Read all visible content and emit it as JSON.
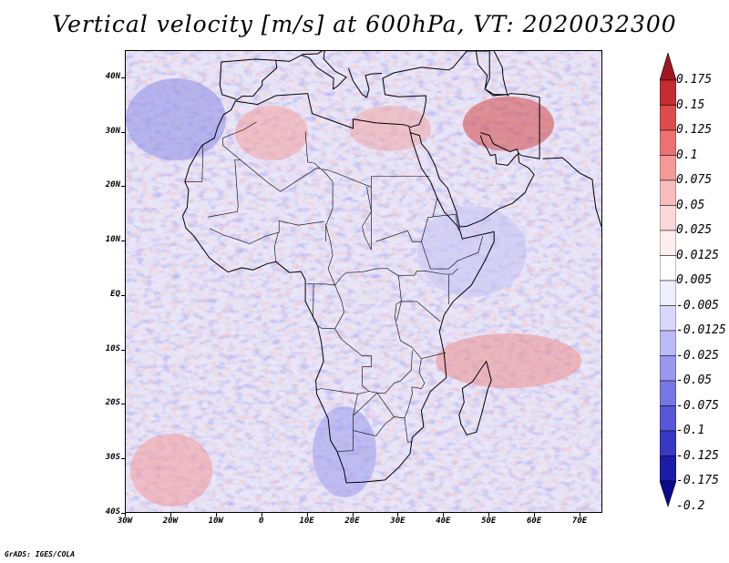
{
  "title": "Vertical velocity [m/s] at 600hPa, VT: 2020032300",
  "credit": "GrADS: IGES/COLA",
  "map": {
    "projection": "latlon",
    "lon_range": [
      -30,
      75
    ],
    "lat_range": [
      -40,
      45
    ],
    "lat_ticks": [
      "40N",
      "30N",
      "20N",
      "10N",
      "EQ",
      "10S",
      "20S",
      "30S",
      "40S"
    ],
    "lon_ticks": [
      "30W",
      "20W",
      "10W",
      "0",
      "10E",
      "20E",
      "30E",
      "40E",
      "50E",
      "60E",
      "70E"
    ],
    "region": "Africa, Arabian Peninsula, Middle East and Indian Ocean"
  },
  "colorbar": {
    "levels": [
      "0.175",
      "0.15",
      "0.125",
      "0.1",
      "0.075",
      "0.05",
      "0.025",
      "0.0125",
      "0.005",
      "-0.005",
      "-0.0125",
      "-0.025",
      "-0.05",
      "-0.075",
      "-0.1",
      "-0.125",
      "-0.175",
      "-0.2"
    ],
    "colors": [
      "#a01824",
      "#c42c32",
      "#dd4c4c",
      "#ec7272",
      "#f49898",
      "#f9bcbc",
      "#fcd8d8",
      "#feeeee",
      "#ffffff",
      "#eeeeff",
      "#d8d8fc",
      "#babaf6",
      "#9898ee",
      "#7676e4",
      "#5656d6",
      "#3838c4",
      "#1c1ca8",
      "#0a0a8c"
    ]
  }
}
